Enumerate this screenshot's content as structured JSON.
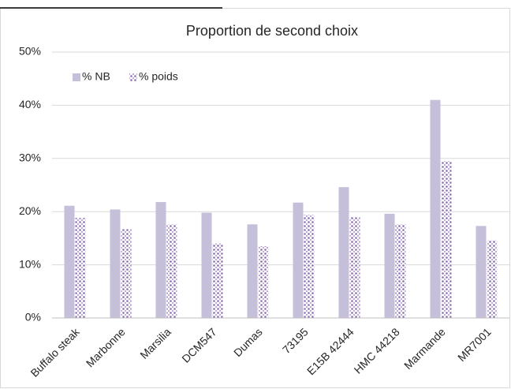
{
  "chart_data": {
    "type": "bar",
    "title": "Proportion de second choix",
    "categories": [
      "Buffalo steak",
      "Marbonne",
      "Marsilia",
      "DCM547",
      "Dumas",
      "73195",
      "E15B 42444",
      "HMC 44218",
      "Marmande",
      "MR7001"
    ],
    "series": [
      {
        "name": "% NB",
        "color": "#c6bfd9",
        "values": [
          21.1,
          20.4,
          21.8,
          19.8,
          17.6,
          21.7,
          24.6,
          19.6,
          41.0,
          17.3
        ]
      },
      {
        "name": "% poids",
        "color": "#8a6bb0",
        "values": [
          18.8,
          16.7,
          17.6,
          14.0,
          13.5,
          19.4,
          19.0,
          17.6,
          29.5,
          14.6
        ]
      }
    ],
    "ylim": [
      0,
      50
    ],
    "yticks": [
      {
        "value": 0,
        "label": "0%"
      },
      {
        "value": 10,
        "label": "10%"
      },
      {
        "value": 20,
        "label": "20%"
      },
      {
        "value": 30,
        "label": "30%"
      },
      {
        "value": 40,
        "label": "40%"
      },
      {
        "value": 50,
        "label": "50%"
      }
    ],
    "grid": true,
    "legend": "top-left"
  }
}
